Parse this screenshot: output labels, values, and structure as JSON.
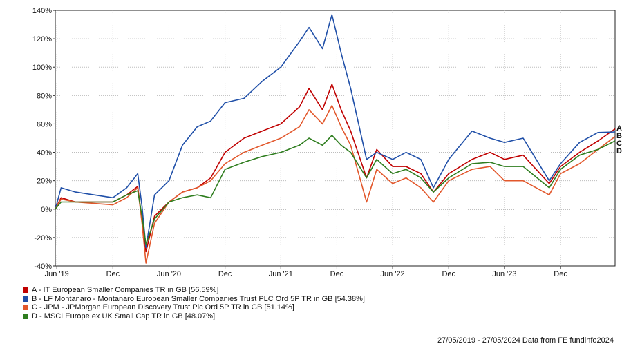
{
  "chart_data": {
    "type": "line",
    "ylim": [
      -40,
      140
    ],
    "y_ticks": [
      -40,
      -20,
      0,
      20,
      40,
      60,
      80,
      100,
      120,
      140
    ],
    "y_tick_labels": [
      "-40%",
      "-20%",
      "0%",
      "20%",
      "40%",
      "60%",
      "80%",
      "100%",
      "120%",
      "140%"
    ],
    "x_range": [
      "2019-05-27",
      "2024-05-27"
    ],
    "x_ticks": [
      {
        "date": "2019-06-01",
        "label": "Jun '19"
      },
      {
        "date": "2019-12-01",
        "label": "Dec"
      },
      {
        "date": "2020-06-01",
        "label": "Jun '20"
      },
      {
        "date": "2020-12-01",
        "label": "Dec"
      },
      {
        "date": "2021-06-01",
        "label": "Jun '21"
      },
      {
        "date": "2021-12-01",
        "label": "Dec"
      },
      {
        "date": "2022-06-01",
        "label": "Jun '22"
      },
      {
        "date": "2022-12-01",
        "label": "Dec"
      },
      {
        "date": "2023-06-01",
        "label": "Jun '23"
      },
      {
        "date": "2023-12-01",
        "label": "Dec"
      }
    ],
    "grid": true,
    "zero_line": "dotted",
    "series": [
      {
        "name": "A - IT European Smaller Companies TR in GB [56.59%]",
        "end_label": "A",
        "color": "#c00000",
        "points": [
          [
            "2019-05-27",
            0
          ],
          [
            "2019-06-15",
            8
          ],
          [
            "2019-08-01",
            5
          ],
          [
            "2019-10-01",
            5
          ],
          [
            "2019-12-01",
            5
          ],
          [
            "2020-01-15",
            10
          ],
          [
            "2020-02-20",
            16
          ],
          [
            "2020-03-05",
            -8
          ],
          [
            "2020-03-18",
            -30
          ],
          [
            "2020-04-15",
            -5
          ],
          [
            "2020-06-01",
            5
          ],
          [
            "2020-07-15",
            12
          ],
          [
            "2020-09-01",
            15
          ],
          [
            "2020-10-15",
            22
          ],
          [
            "2020-12-01",
            40
          ],
          [
            "2021-02-01",
            50
          ],
          [
            "2021-04-01",
            55
          ],
          [
            "2021-06-01",
            60
          ],
          [
            "2021-08-01",
            72
          ],
          [
            "2021-09-01",
            85
          ],
          [
            "2021-10-15",
            70
          ],
          [
            "2021-11-15",
            88
          ],
          [
            "2021-12-15",
            70
          ],
          [
            "2022-01-15",
            55
          ],
          [
            "2022-03-08",
            22
          ],
          [
            "2022-04-10",
            42
          ],
          [
            "2022-06-01",
            30
          ],
          [
            "2022-07-15",
            30
          ],
          [
            "2022-09-01",
            25
          ],
          [
            "2022-10-12",
            12
          ],
          [
            "2022-12-01",
            25
          ],
          [
            "2023-02-15",
            35
          ],
          [
            "2023-04-15",
            40
          ],
          [
            "2023-06-01",
            35
          ],
          [
            "2023-08-01",
            38
          ],
          [
            "2023-10-25",
            18
          ],
          [
            "2023-12-01",
            30
          ],
          [
            "2024-02-01",
            40
          ],
          [
            "2024-04-01",
            48
          ],
          [
            "2024-05-27",
            56.59
          ]
        ]
      },
      {
        "name": "B - LF Montanaro - Montanaro European Smaller Companies Trust PLC Ord 5P TR in GB [54.38%]",
        "end_label": "B",
        "color": "#1f4fa8",
        "points": [
          [
            "2019-05-27",
            0
          ],
          [
            "2019-06-15",
            15
          ],
          [
            "2019-08-01",
            12
          ],
          [
            "2019-10-01",
            10
          ],
          [
            "2019-12-01",
            8
          ],
          [
            "2020-01-15",
            15
          ],
          [
            "2020-02-20",
            25
          ],
          [
            "2020-03-05",
            2
          ],
          [
            "2020-03-18",
            -27
          ],
          [
            "2020-04-15",
            10
          ],
          [
            "2020-06-01",
            20
          ],
          [
            "2020-07-15",
            45
          ],
          [
            "2020-09-01",
            58
          ],
          [
            "2020-10-15",
            62
          ],
          [
            "2020-12-01",
            75
          ],
          [
            "2021-02-01",
            78
          ],
          [
            "2021-04-01",
            90
          ],
          [
            "2021-06-01",
            100
          ],
          [
            "2021-08-01",
            118
          ],
          [
            "2021-09-01",
            128
          ],
          [
            "2021-10-15",
            113
          ],
          [
            "2021-11-15",
            137
          ],
          [
            "2021-12-15",
            110
          ],
          [
            "2022-01-15",
            85
          ],
          [
            "2022-03-08",
            35
          ],
          [
            "2022-04-10",
            40
          ],
          [
            "2022-06-01",
            35
          ],
          [
            "2022-07-15",
            40
          ],
          [
            "2022-09-01",
            35
          ],
          [
            "2022-10-12",
            15
          ],
          [
            "2022-12-01",
            35
          ],
          [
            "2023-02-15",
            55
          ],
          [
            "2023-04-15",
            50
          ],
          [
            "2023-06-01",
            47
          ],
          [
            "2023-08-01",
            50
          ],
          [
            "2023-10-25",
            20
          ],
          [
            "2023-12-01",
            32
          ],
          [
            "2024-02-01",
            47
          ],
          [
            "2024-04-01",
            54
          ],
          [
            "2024-05-27",
            54.38
          ]
        ]
      },
      {
        "name": "C - JPM - JPMorgan European Discovery Trust Plc Ord 5P TR in GB [51.14%]",
        "end_label": "C",
        "color": "#e2572b",
        "points": [
          [
            "2019-05-27",
            0
          ],
          [
            "2019-06-15",
            7
          ],
          [
            "2019-08-01",
            5
          ],
          [
            "2019-10-01",
            4
          ],
          [
            "2019-12-01",
            3
          ],
          [
            "2020-01-15",
            8
          ],
          [
            "2020-02-20",
            15
          ],
          [
            "2020-03-05",
            -10
          ],
          [
            "2020-03-18",
            -38
          ],
          [
            "2020-04-15",
            -10
          ],
          [
            "2020-06-01",
            5
          ],
          [
            "2020-07-15",
            12
          ],
          [
            "2020-09-01",
            15
          ],
          [
            "2020-10-15",
            20
          ],
          [
            "2020-12-01",
            32
          ],
          [
            "2021-02-01",
            40
          ],
          [
            "2021-04-01",
            45
          ],
          [
            "2021-06-01",
            50
          ],
          [
            "2021-08-01",
            58
          ],
          [
            "2021-09-01",
            70
          ],
          [
            "2021-10-15",
            60
          ],
          [
            "2021-11-15",
            73
          ],
          [
            "2021-12-15",
            58
          ],
          [
            "2022-01-15",
            45
          ],
          [
            "2022-03-08",
            5
          ],
          [
            "2022-04-10",
            28
          ],
          [
            "2022-06-01",
            18
          ],
          [
            "2022-07-15",
            22
          ],
          [
            "2022-09-01",
            15
          ],
          [
            "2022-10-12",
            5
          ],
          [
            "2022-12-01",
            20
          ],
          [
            "2023-02-15",
            28
          ],
          [
            "2023-04-15",
            30
          ],
          [
            "2023-06-01",
            20
          ],
          [
            "2023-08-01",
            20
          ],
          [
            "2023-10-25",
            10
          ],
          [
            "2023-12-01",
            25
          ],
          [
            "2024-02-01",
            32
          ],
          [
            "2024-04-01",
            42
          ],
          [
            "2024-05-27",
            51.14
          ]
        ]
      },
      {
        "name": "D - MSCI Europe ex UK Small Cap TR in GB [48.07%]",
        "end_label": "D",
        "color": "#2e7d1e",
        "points": [
          [
            "2019-05-27",
            0
          ],
          [
            "2019-06-15",
            5
          ],
          [
            "2019-08-01",
            5
          ],
          [
            "2019-10-01",
            5
          ],
          [
            "2019-12-01",
            5
          ],
          [
            "2020-01-15",
            10
          ],
          [
            "2020-02-20",
            13
          ],
          [
            "2020-03-05",
            -5
          ],
          [
            "2020-03-18",
            -25
          ],
          [
            "2020-04-15",
            -7
          ],
          [
            "2020-06-01",
            5
          ],
          [
            "2020-07-15",
            8
          ],
          [
            "2020-09-01",
            10
          ],
          [
            "2020-10-15",
            8
          ],
          [
            "2020-12-01",
            28
          ],
          [
            "2021-02-01",
            33
          ],
          [
            "2021-04-01",
            37
          ],
          [
            "2021-06-01",
            40
          ],
          [
            "2021-08-01",
            45
          ],
          [
            "2021-09-01",
            50
          ],
          [
            "2021-10-15",
            45
          ],
          [
            "2021-11-15",
            52
          ],
          [
            "2021-12-15",
            45
          ],
          [
            "2022-01-15",
            40
          ],
          [
            "2022-03-08",
            22
          ],
          [
            "2022-04-10",
            35
          ],
          [
            "2022-06-01",
            25
          ],
          [
            "2022-07-15",
            28
          ],
          [
            "2022-09-01",
            22
          ],
          [
            "2022-10-12",
            12
          ],
          [
            "2022-12-01",
            22
          ],
          [
            "2023-02-15",
            32
          ],
          [
            "2023-04-15",
            33
          ],
          [
            "2023-06-01",
            30
          ],
          [
            "2023-08-01",
            30
          ],
          [
            "2023-10-25",
            15
          ],
          [
            "2023-12-01",
            28
          ],
          [
            "2024-02-01",
            38
          ],
          [
            "2024-04-01",
            42
          ],
          [
            "2024-05-27",
            48.07
          ]
        ]
      }
    ]
  },
  "footer": {
    "date_range": "27/05/2019 - 27/05/2024",
    "source": "Data from FE fundinfo2024"
  }
}
